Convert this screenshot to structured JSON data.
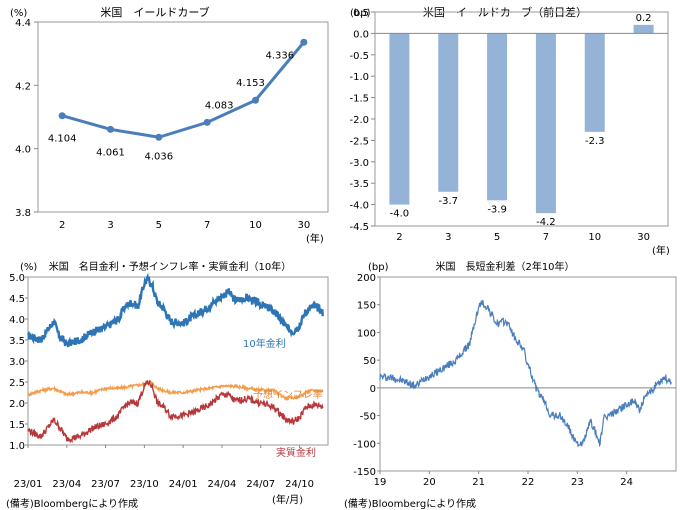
{
  "chart_data": [
    {
      "id": "yield_curve",
      "type": "line",
      "title": "米国　イールドカーブ",
      "unit_label": "(%)",
      "x_unit": "(年)",
      "categories": [
        "2",
        "3",
        "5",
        "7",
        "10",
        "30"
      ],
      "values": [
        4.104,
        4.061,
        4.036,
        4.083,
        4.153,
        4.336
      ],
      "data_labels": [
        "4.104",
        "4.061",
        "4.036",
        "4.083",
        "4.153",
        "4.336"
      ],
      "ylim": [
        3.8,
        4.4
      ],
      "yticks": [
        "3.8",
        "4.0",
        "4.2",
        "4.4"
      ],
      "color": "#4A7EBB",
      "grid": false
    },
    {
      "id": "yield_change",
      "type": "bar",
      "title": "米国　イールドカーブ（前日差）",
      "unit_label": "(bp)",
      "x_unit": "(年)",
      "categories": [
        "2",
        "3",
        "5",
        "7",
        "10",
        "30"
      ],
      "values": [
        -4.0,
        -3.7,
        -3.9,
        -4.2,
        -2.3,
        0.2
      ],
      "data_labels": [
        "-4.0",
        "-3.7",
        "-3.9",
        "-4.2",
        "-2.3",
        "0.2"
      ],
      "ylim": [
        -4.5,
        0.5
      ],
      "yticks": [
        "0.5",
        "0.0",
        "-0.5",
        "-1.0",
        "-1.5",
        "-2.0",
        "-2.5",
        "-3.0",
        "-3.5",
        "-4.0",
        "-4.5"
      ],
      "color": "#95B3D7",
      "grid": false
    },
    {
      "id": "rates",
      "type": "line",
      "title": "米国　名目金利・予想インフレ率・実質金利（10年）",
      "unit_label": "(%)",
      "x_unit": "(年/月)",
      "categories": [
        "23/01",
        "23/04",
        "23/07",
        "23/10",
        "24/01",
        "24/04",
        "24/07",
        "24/10"
      ],
      "ylim": [
        1.0,
        5.0
      ],
      "yticks": [
        "1.0",
        "1.5",
        "2.0",
        "2.5",
        "3.0",
        "3.5",
        "4.0",
        "4.5",
        "5.0"
      ],
      "grid": false,
      "series": [
        {
          "name": "10年金利",
          "color": "#2E75B6",
          "keys": [
            [
              0,
              3.6
            ],
            [
              1,
              3.5
            ],
            [
              2,
              3.95
            ],
            [
              2.4,
              3.6
            ],
            [
              3,
              3.4
            ],
            [
              4,
              3.5
            ],
            [
              5,
              3.7
            ],
            [
              6,
              3.8
            ],
            [
              7,
              4.0
            ],
            [
              7.5,
              4.3
            ],
            [
              8,
              4.4
            ],
            [
              8.5,
              4.3
            ],
            [
              9,
              4.85
            ],
            [
              9.3,
              4.95
            ],
            [
              9.6,
              4.8
            ],
            [
              10,
              4.4
            ],
            [
              10.5,
              4.25
            ],
            [
              11,
              3.95
            ],
            [
              12,
              3.9
            ],
            [
              13,
              4.1
            ],
            [
              14,
              4.3
            ],
            [
              15,
              4.55
            ],
            [
              15.5,
              4.65
            ],
            [
              16,
              4.45
            ],
            [
              17,
              4.5
            ],
            [
              18,
              4.35
            ],
            [
              19,
              4.2
            ],
            [
              20,
              3.8
            ],
            [
              20.5,
              3.7
            ],
            [
              21,
              3.85
            ],
            [
              21.5,
              4.2
            ],
            [
              22,
              4.3
            ],
            [
              22.5,
              4.25
            ],
            [
              22.8,
              4.15
            ]
          ]
        },
        {
          "name": "予想インフレ率",
          "color": "#F39C4A",
          "keys": [
            [
              0,
              2.2
            ],
            [
              1,
              2.3
            ],
            [
              2,
              2.35
            ],
            [
              3,
              2.2
            ],
            [
              4,
              2.25
            ],
            [
              5,
              2.25
            ],
            [
              6,
              2.35
            ],
            [
              7,
              2.35
            ],
            [
              8,
              2.4
            ],
            [
              9,
              2.45
            ],
            [
              9.5,
              2.5
            ],
            [
              10,
              2.35
            ],
            [
              11,
              2.25
            ],
            [
              12,
              2.25
            ],
            [
              13,
              2.3
            ],
            [
              14,
              2.35
            ],
            [
              15,
              2.4
            ],
            [
              16,
              2.4
            ],
            [
              17,
              2.35
            ],
            [
              18,
              2.3
            ],
            [
              19,
              2.3
            ],
            [
              20,
              2.1
            ],
            [
              21,
              2.15
            ],
            [
              21.5,
              2.25
            ],
            [
              22,
              2.3
            ],
            [
              22.8,
              2.28
            ]
          ]
        },
        {
          "name": "実質金利",
          "color": "#B7373A",
          "keys": [
            [
              0,
              1.35
            ],
            [
              1,
              1.2
            ],
            [
              2,
              1.6
            ],
            [
              2.5,
              1.4
            ],
            [
              3,
              1.15
            ],
            [
              4,
              1.2
            ],
            [
              5,
              1.4
            ],
            [
              6,
              1.5
            ],
            [
              7,
              1.7
            ],
            [
              7.5,
              1.95
            ],
            [
              8,
              2.0
            ],
            [
              8.5,
              2.0
            ],
            [
              9,
              2.4
            ],
            [
              9.3,
              2.5
            ],
            [
              9.6,
              2.4
            ],
            [
              10,
              2.0
            ],
            [
              10.5,
              1.9
            ],
            [
              11,
              1.7
            ],
            [
              12,
              1.7
            ],
            [
              13,
              1.8
            ],
            [
              14,
              1.95
            ],
            [
              15,
              2.2
            ],
            [
              15.5,
              2.2
            ],
            [
              16,
              2.05
            ],
            [
              17,
              2.1
            ],
            [
              18,
              2.0
            ],
            [
              19,
              1.9
            ],
            [
              20,
              1.6
            ],
            [
              20.5,
              1.55
            ],
            [
              21,
              1.65
            ],
            [
              21.5,
              1.9
            ],
            [
              22,
              1.95
            ],
            [
              22.5,
              1.95
            ],
            [
              22.8,
              1.9
            ]
          ]
        }
      ]
    },
    {
      "id": "spread",
      "type": "line",
      "title": "米国　長短金利差（2年10年）",
      "unit_label": "(bp)",
      "categories": [
        "19",
        "20",
        "21",
        "22",
        "23",
        "24"
      ],
      "ylim": [
        -150,
        200
      ],
      "yticks": [
        "200",
        "150",
        "100",
        "50",
        "0",
        "-50",
        "-100",
        "-150"
      ],
      "grid": false,
      "series": [
        {
          "name": "",
          "color": "#4A7EBB",
          "keys": [
            [
              0,
              20
            ],
            [
              0.3,
              18
            ],
            [
              0.6,
              10
            ],
            [
              0.8,
              3
            ],
            [
              1,
              18
            ],
            [
              1.2,
              25
            ],
            [
              1.5,
              40
            ],
            [
              1.7,
              50
            ],
            [
              1.9,
              70
            ],
            [
              2,
              80
            ],
            [
              2.15,
              130
            ],
            [
              2.25,
              155
            ],
            [
              2.4,
              145
            ],
            [
              2.6,
              115
            ],
            [
              2.8,
              120
            ],
            [
              2.9,
              110
            ],
            [
              3,
              90
            ],
            [
              3.2,
              70
            ],
            [
              3.3,
              40
            ],
            [
              3.4,
              20
            ],
            [
              3.5,
              -5
            ],
            [
              3.7,
              -30
            ],
            [
              3.8,
              -50
            ],
            [
              4,
              -50
            ],
            [
              4.2,
              -70
            ],
            [
              4.3,
              -90
            ],
            [
              4.5,
              -105
            ],
            [
              4.7,
              -60
            ],
            [
              4.8,
              -80
            ],
            [
              4.9,
              -100
            ],
            [
              5,
              -55
            ],
            [
              5.2,
              -45
            ],
            [
              5.4,
              -35
            ],
            [
              5.5,
              -30
            ],
            [
              5.7,
              -25
            ],
            [
              5.8,
              -40
            ],
            [
              5.9,
              -20
            ],
            [
              6.1,
              0
            ],
            [
              6.2,
              10
            ],
            [
              6.35,
              20
            ],
            [
              6.5,
              5
            ]
          ]
        }
      ]
    }
  ],
  "footer": {
    "left_note": "(備考)Bloombergにより作成",
    "right_note": "(備考)Bloombergにより作成"
  }
}
